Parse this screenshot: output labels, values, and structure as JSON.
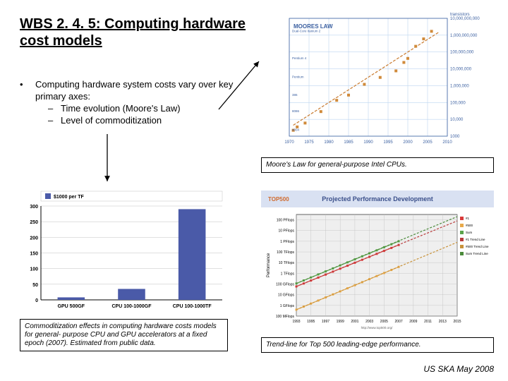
{
  "title": "WBS 2. 4. 5: Computing hardware cost models",
  "bullets": {
    "main": "Computing hardware system costs vary over key primary axes:",
    "sub1": "Time evolution (Moore's Law)",
    "sub2": "Level of commoditization"
  },
  "captions": {
    "moore": "Moore's Law for general-purpose Intel CPUs.",
    "commodity": "Commoditization effects in computing hardware costs models for general- purpose CPU and GPU accelerators at a fixed epoch (2007). Estimated from public data.",
    "top500": "Trend-line for Top 500 leading-edge performance."
  },
  "footer": "US SKA May 2008",
  "moore_chart": {
    "type": "scatter-log",
    "title": "MOORES LAW",
    "title_fontsize": 8,
    "title_color": "#3a5fa0",
    "xlabel_years": [
      1970,
      1975,
      1980,
      1985,
      1990,
      1995,
      2000,
      2005,
      2010
    ],
    "ylabels": [
      "1000",
      "10,000",
      "100,000",
      "1,000,000",
      "10,000,000",
      "100,000,000",
      "1,000,000,000",
      "10,000,000,000"
    ],
    "ylabel_right": "transistors",
    "points": [
      {
        "x": 1971,
        "y": 3.35,
        "color": "#d08a3a"
      },
      {
        "x": 1972,
        "y": 3.55,
        "color": "#d08a3a"
      },
      {
        "x": 1974,
        "y": 3.78,
        "color": "#d08a3a"
      },
      {
        "x": 1978,
        "y": 4.46,
        "color": "#d08a3a"
      },
      {
        "x": 1982,
        "y": 5.13,
        "color": "#d08a3a"
      },
      {
        "x": 1985,
        "y": 5.44,
        "color": "#d08a3a"
      },
      {
        "x": 1989,
        "y": 6.08,
        "color": "#d08a3a"
      },
      {
        "x": 1993,
        "y": 6.49,
        "color": "#d08a3a"
      },
      {
        "x": 1997,
        "y": 6.88,
        "color": "#d08a3a"
      },
      {
        "x": 1999,
        "y": 7.38,
        "color": "#d08a3a"
      },
      {
        "x": 2000,
        "y": 7.62,
        "color": "#d08a3a"
      },
      {
        "x": 2002,
        "y": 8.34,
        "color": "#d08a3a"
      },
      {
        "x": 2004,
        "y": 8.78,
        "color": "#d08a3a"
      },
      {
        "x": 2006,
        "y": 9.23,
        "color": "#d08a3a"
      }
    ],
    "trendline": {
      "slope": 0.15,
      "intercept": -292,
      "color": "#c97a2e"
    },
    "grid_color": "#bcd5f0",
    "axis_color": "#3a5fa0",
    "label_fontsize": 6,
    "annotations": [
      "4004",
      "8008",
      "8080",
      "8086",
      "286",
      "386",
      "486",
      "Pentium",
      "Pentium II",
      "Pentium III",
      "Pentium 4",
      "Itanium",
      "Itanium 2",
      "Dual-Core Itanium 2"
    ]
  },
  "commodity_chart": {
    "type": "bar",
    "legend": "$1000 per TF",
    "legend_color": "#4a5aa8",
    "categories": [
      "GPU 500GF",
      "CPU 100-1000GF",
      "CPU 100-1000TF"
    ],
    "values": [
      8,
      35,
      290
    ],
    "bar_color": "#4a5aa8",
    "ylim": [
      0,
      300
    ],
    "ytick_step": 50,
    "yticks": [
      0,
      50,
      100,
      150,
      200,
      250,
      300
    ],
    "grid_color": "#c0c0c0",
    "axis_color": "#000000",
    "background": "#ffffff",
    "label_fontsize": 7,
    "bar_width": 0.45
  },
  "top500_chart": {
    "type": "line-log",
    "title": "Projected Performance Development",
    "title_color": "#3a4f8a",
    "title_fontsize": 9,
    "header_bg": "#d9e1f2",
    "logo_text": "TOP500",
    "xlabel_years": [
      1993,
      1995,
      1997,
      1999,
      2001,
      2003,
      2005,
      2007,
      2009,
      2011,
      2013,
      2015
    ],
    "ylabel": "Performance",
    "yticks": [
      "100 MFlops",
      "1 GFlops",
      "10 GFlops",
      "100 GFlops",
      "1 TFlops",
      "10 TFlops",
      "100 TFlops",
      "1 PFlops",
      "10 PFlops",
      "100 PFlops"
    ],
    "series": [
      {
        "name": "#1",
        "color": "#d93a3a",
        "marker": "square",
        "y1993": 1.77,
        "y2007": 5.65
      },
      {
        "name": "#500",
        "color": "#e8a94a",
        "marker": "square",
        "y1993": -0.4,
        "y2007": 3.6
      },
      {
        "name": "Sum",
        "color": "#5aa34a",
        "marker": "square",
        "y1993": 2.05,
        "y2007": 6.0
      },
      {
        "name": "#1 Trend Line",
        "color": "#b83a3a",
        "dash": true,
        "y1993": 1.77,
        "y2015": 7.9
      },
      {
        "name": "#500 Trend Line",
        "color": "#c8923a",
        "dash": true,
        "y1993": -0.4,
        "y2015": 5.9
      },
      {
        "name": "Sum Trend Line",
        "color": "#4a8a3a",
        "dash": true,
        "y1993": 2.05,
        "y2015": 8.3
      }
    ],
    "grid_color": "#c0c0c0",
    "axis_color": "#000000",
    "label_fontsize": 5,
    "source_url": "http://www.top500.org/",
    "plot_bg": "#efefef"
  },
  "arrow_color": "#000000"
}
